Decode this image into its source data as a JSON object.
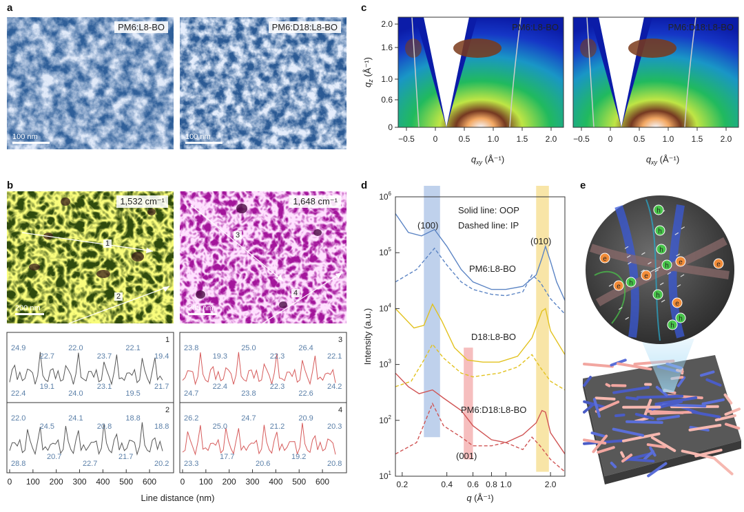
{
  "panels": {
    "a": {
      "label": "a",
      "images": [
        {
          "tag": "PM6:L8-BO",
          "scale": "100 nm"
        },
        {
          "tag": "PM6:D18:L8-BO",
          "scale": "100 nm"
        }
      ]
    },
    "b": {
      "label": "b",
      "images": [
        {
          "tag": "1,532 cm⁻¹",
          "scale": "200 nm",
          "lines": [
            "1",
            "2"
          ]
        },
        {
          "tag": "1,648 cm⁻¹",
          "scale": "200 nm",
          "lines": [
            "3",
            "4"
          ]
        }
      ],
      "profiles": [
        {
          "id": "1",
          "values": [
            "24.9",
            "22.7",
            "22.0",
            "23.7",
            "22.1",
            "19.4",
            "22.4",
            "19.1",
            "24.0",
            "23.1",
            "19.5",
            "21.7"
          ]
        },
        {
          "id": "2",
          "values": [
            "22.0",
            "24.5",
            "24.1",
            "20.8",
            "18.8",
            "18.8",
            "28.8",
            "20.7",
            "22.7",
            "21.7",
            "20.2"
          ]
        },
        {
          "id": "3",
          "values": [
            "23.8",
            "19.3",
            "25.0",
            "22.3",
            "26.4",
            "22.1",
            "24.7",
            "22.4",
            "23.8",
            "22.3",
            "22.6",
            "24.2"
          ]
        },
        {
          "id": "4",
          "values": [
            "26.2",
            "25.0",
            "24.7",
            "21.2",
            "20.9",
            "20.3",
            "23.3",
            "17.7",
            "20.6",
            "19.2",
            "20.8"
          ]
        }
      ],
      "x_ticks": [
        "0",
        "100",
        "200",
        "300",
        "400",
        "500",
        "600"
      ],
      "xlabel": "Line distance (nm)"
    },
    "c": {
      "label": "c",
      "images": [
        {
          "tag": "PM6:L8-BO"
        },
        {
          "tag": "PM6:D18:L8-BO"
        }
      ],
      "y_ticks": [
        "2.0",
        "1.6",
        "1.0",
        "0.6",
        "0"
      ],
      "x_ticks": [
        "−0.5",
        "0",
        "0.5",
        "1.0",
        "1.5",
        "2.0"
      ],
      "ylabel_main": "q",
      "ylabel_sub": "z",
      "ylabel_unit": " (Å⁻¹)",
      "xlabel_main": "q",
      "xlabel_sub": "xy",
      "xlabel_unit": " (Å⁻¹)"
    },
    "d": {
      "label": "d",
      "legend_solid": "Solid line: OOP",
      "legend_dashed": "Dashed line: IP",
      "peak_100": "(100)",
      "peak_010": "(010)",
      "peak_001": "(001)",
      "ylabel": "Intensity (a.u.)",
      "xlabel_main": "q",
      "xlabel_unit": " (Å⁻¹)",
      "y_ticks": [
        {
          "base": "10",
          "exp": "6"
        },
        {
          "base": "10",
          "exp": "5"
        },
        {
          "base": "10",
          "exp": "4"
        },
        {
          "base": "10",
          "exp": "3"
        },
        {
          "base": "10",
          "exp": "2"
        },
        {
          "base": "10",
          "exp": "1"
        }
      ],
      "x_ticks": [
        "0.2",
        "0.4",
        "0.6",
        "0.8",
        "1.0",
        "2.0"
      ],
      "series_labels": [
        "PM6:L8-BO",
        "D18:L8-BO",
        "PM6:D18:L8-BO"
      ]
    },
    "e": {
      "label": "e",
      "electron": "e",
      "hole": "h"
    }
  },
  "colors": {
    "afm_blue": "#3d6ea8",
    "ir_green": "#5a8a10",
    "ir_magenta": "#c020b8",
    "series_blue": "#5b84c4",
    "series_yellow": "#e2c21e",
    "series_red": "#d05454",
    "band_blue": "#a9c2e6",
    "band_red": "#f3a8a8",
    "band_yellow": "#f6dc8a",
    "profile_gray": "#555555",
    "profile_red": "#d65a5a"
  },
  "chart_data": [
    {
      "type": "line",
      "title": "",
      "xlabel": "q (Å⁻¹)",
      "ylabel": "Intensity (a.u.)",
      "xscale": "log",
      "yscale": "log",
      "xlim": [
        0.18,
        2.5
      ],
      "ylim": [
        10,
        1000000
      ],
      "series": [
        {
          "name": "PM6:L8-BO",
          "style": "solid",
          "color": "#5b84c4",
          "x": [
            0.18,
            0.22,
            0.27,
            0.33,
            0.4,
            0.5,
            0.6,
            0.8,
            1.0,
            1.3,
            1.6,
            1.75,
            1.85,
            2.0,
            2.2,
            2.5
          ],
          "y": [
            500000,
            230000,
            200000,
            260000,
            130000,
            50000,
            30000,
            22000,
            22000,
            25000,
            40000,
            80000,
            130000,
            70000,
            30000,
            14000
          ]
        },
        {
          "name": "PM6:L8-BO",
          "style": "dashed",
          "color": "#5b84c4",
          "x": [
            0.18,
            0.25,
            0.33,
            0.4,
            0.5,
            0.6,
            0.8,
            1.0,
            1.3,
            1.5,
            1.7,
            2.0,
            2.5
          ],
          "y": [
            30000,
            50000,
            120000,
            60000,
            30000,
            22000,
            18000,
            17000,
            20000,
            40000,
            30000,
            15000,
            8000
          ]
        },
        {
          "name": "D18:L8-BO",
          "style": "solid",
          "color": "#e2c21e",
          "x": [
            0.18,
            0.24,
            0.28,
            0.32,
            0.37,
            0.45,
            0.55,
            0.7,
            0.9,
            1.2,
            1.5,
            1.75,
            1.85,
            2.0,
            2.5
          ],
          "y": [
            10000,
            4500,
            5000,
            12000,
            6000,
            2000,
            1200,
            1100,
            1100,
            1400,
            3000,
            9000,
            10000,
            4000,
            1500
          ]
        },
        {
          "name": "D18:L8-BO",
          "style": "dashed",
          "color": "#e2c21e",
          "x": [
            0.18,
            0.23,
            0.28,
            0.32,
            0.38,
            0.5,
            0.6,
            0.9,
            1.2,
            1.5,
            1.7,
            2.0,
            2.5
          ],
          "y": [
            400,
            500,
            1200,
            2300,
            1300,
            700,
            600,
            700,
            900,
            1500,
            900,
            500,
            350
          ]
        },
        {
          "name": "PM6:D18:L8-BO",
          "style": "solid",
          "color": "#d05454",
          "x": [
            0.18,
            0.22,
            0.26,
            0.32,
            0.38,
            0.5,
            0.6,
            0.8,
            1.0,
            1.3,
            1.6,
            1.75,
            1.85,
            2.0,
            2.5
          ],
          "y": [
            700,
            400,
            300,
            350,
            250,
            150,
            80,
            45,
            40,
            55,
            90,
            150,
            140,
            60,
            25
          ]
        },
        {
          "name": "PM6:D18:L8-BO",
          "style": "dashed",
          "color": "#d05454",
          "x": [
            0.18,
            0.25,
            0.32,
            0.38,
            0.5,
            0.6,
            0.8,
            1.0,
            1.3,
            1.5,
            1.7,
            2.0,
            2.5
          ],
          "y": [
            25,
            40,
            200,
            80,
            50,
            35,
            35,
            40,
            30,
            50,
            35,
            20,
            12
          ]
        }
      ],
      "bands": [
        {
          "label": "(100)",
          "x_range": [
            0.28,
            0.36
          ],
          "y_range": [
            50,
            1800000
          ],
          "color": "#a9c2e6"
        },
        {
          "label": "(001)",
          "x_range": [
            0.52,
            0.6
          ],
          "y_range": [
            20,
            2000
          ],
          "color": "#f3a8a8"
        },
        {
          "label": "(010)",
          "x_range": [
            1.6,
            1.95
          ],
          "y_range": [
            12,
            1800000
          ],
          "color": "#f6dc8a"
        }
      ],
      "annotations": [
        "Solid line: OOP",
        "Dashed line: IP"
      ]
    },
    {
      "type": "line",
      "title": "",
      "xlabel": "Line distance (nm)",
      "ylabel": "",
      "xlim": [
        0,
        650
      ],
      "note": "panel b height profiles 1-4 with labeled widths (nm)"
    }
  ]
}
